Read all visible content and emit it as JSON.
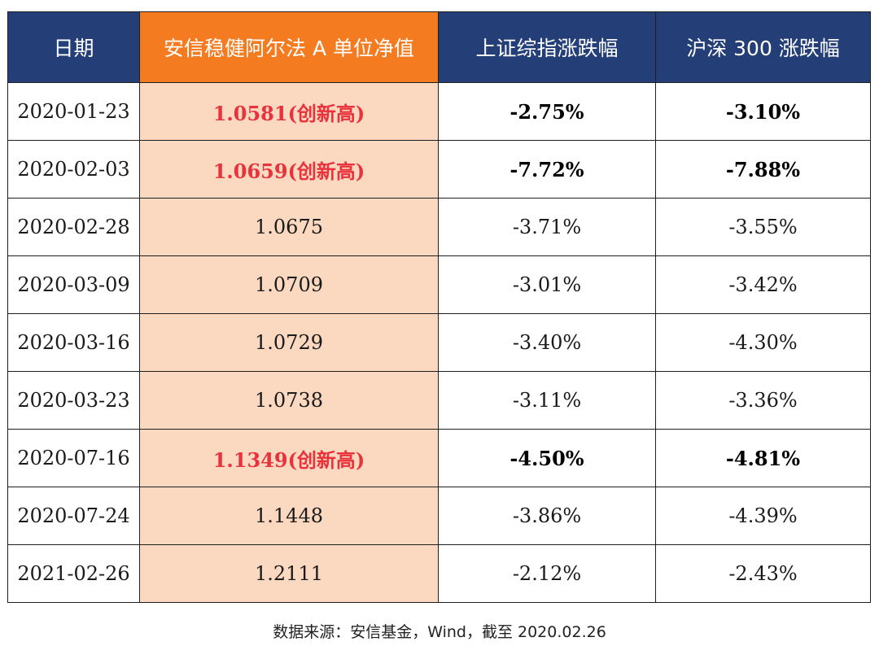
{
  "table": {
    "headers": [
      "日期",
      "安信稳健阿尔法 A 单位净值",
      "上证综指涨跌幅",
      "沪深 300 涨跌幅"
    ],
    "rows": [
      {
        "date": "2020-01-23",
        "nav": "1.0581(创新高)",
        "sse": "-2.75%",
        "csi300": "-3.10%",
        "highlight": true
      },
      {
        "date": "2020-02-03",
        "nav": "1.0659(创新高)",
        "sse": "-7.72%",
        "csi300": "-7.88%",
        "highlight": true
      },
      {
        "date": "2020-02-28",
        "nav": "1.0675",
        "sse": "-3.71%",
        "csi300": "-3.55%",
        "highlight": false
      },
      {
        "date": "2020-03-09",
        "nav": "1.0709",
        "sse": "-3.01%",
        "csi300": "-3.42%",
        "highlight": false
      },
      {
        "date": "2020-03-16",
        "nav": "1.0729",
        "sse": "-3.40%",
        "csi300": "-4.30%",
        "highlight": false
      },
      {
        "date": "2020-03-23",
        "nav": "1.0738",
        "sse": "-3.11%",
        "csi300": "-3.36%",
        "highlight": false
      },
      {
        "date": "2020-07-16",
        "nav": "1.1349(创新高)",
        "sse": "-4.50%",
        "csi300": "-4.81%",
        "highlight": true
      },
      {
        "date": "2020-07-24",
        "nav": "1.1448",
        "sse": "-3.86%",
        "csi300": "-4.39%",
        "highlight": false
      },
      {
        "date": "2021-02-26",
        "nav": "1.2111",
        "sse": "-2.12%",
        "csi300": "-2.43%",
        "highlight": false
      }
    ]
  },
  "source_note": "数据来源：安信基金，Wind，截至 2020.02.26",
  "colors": {
    "header_bg": "#243f78",
    "fund_header_bg": "#f47b20",
    "fund_column_bg": "#fbd9c0",
    "new_high_text": "#e8323c"
  }
}
